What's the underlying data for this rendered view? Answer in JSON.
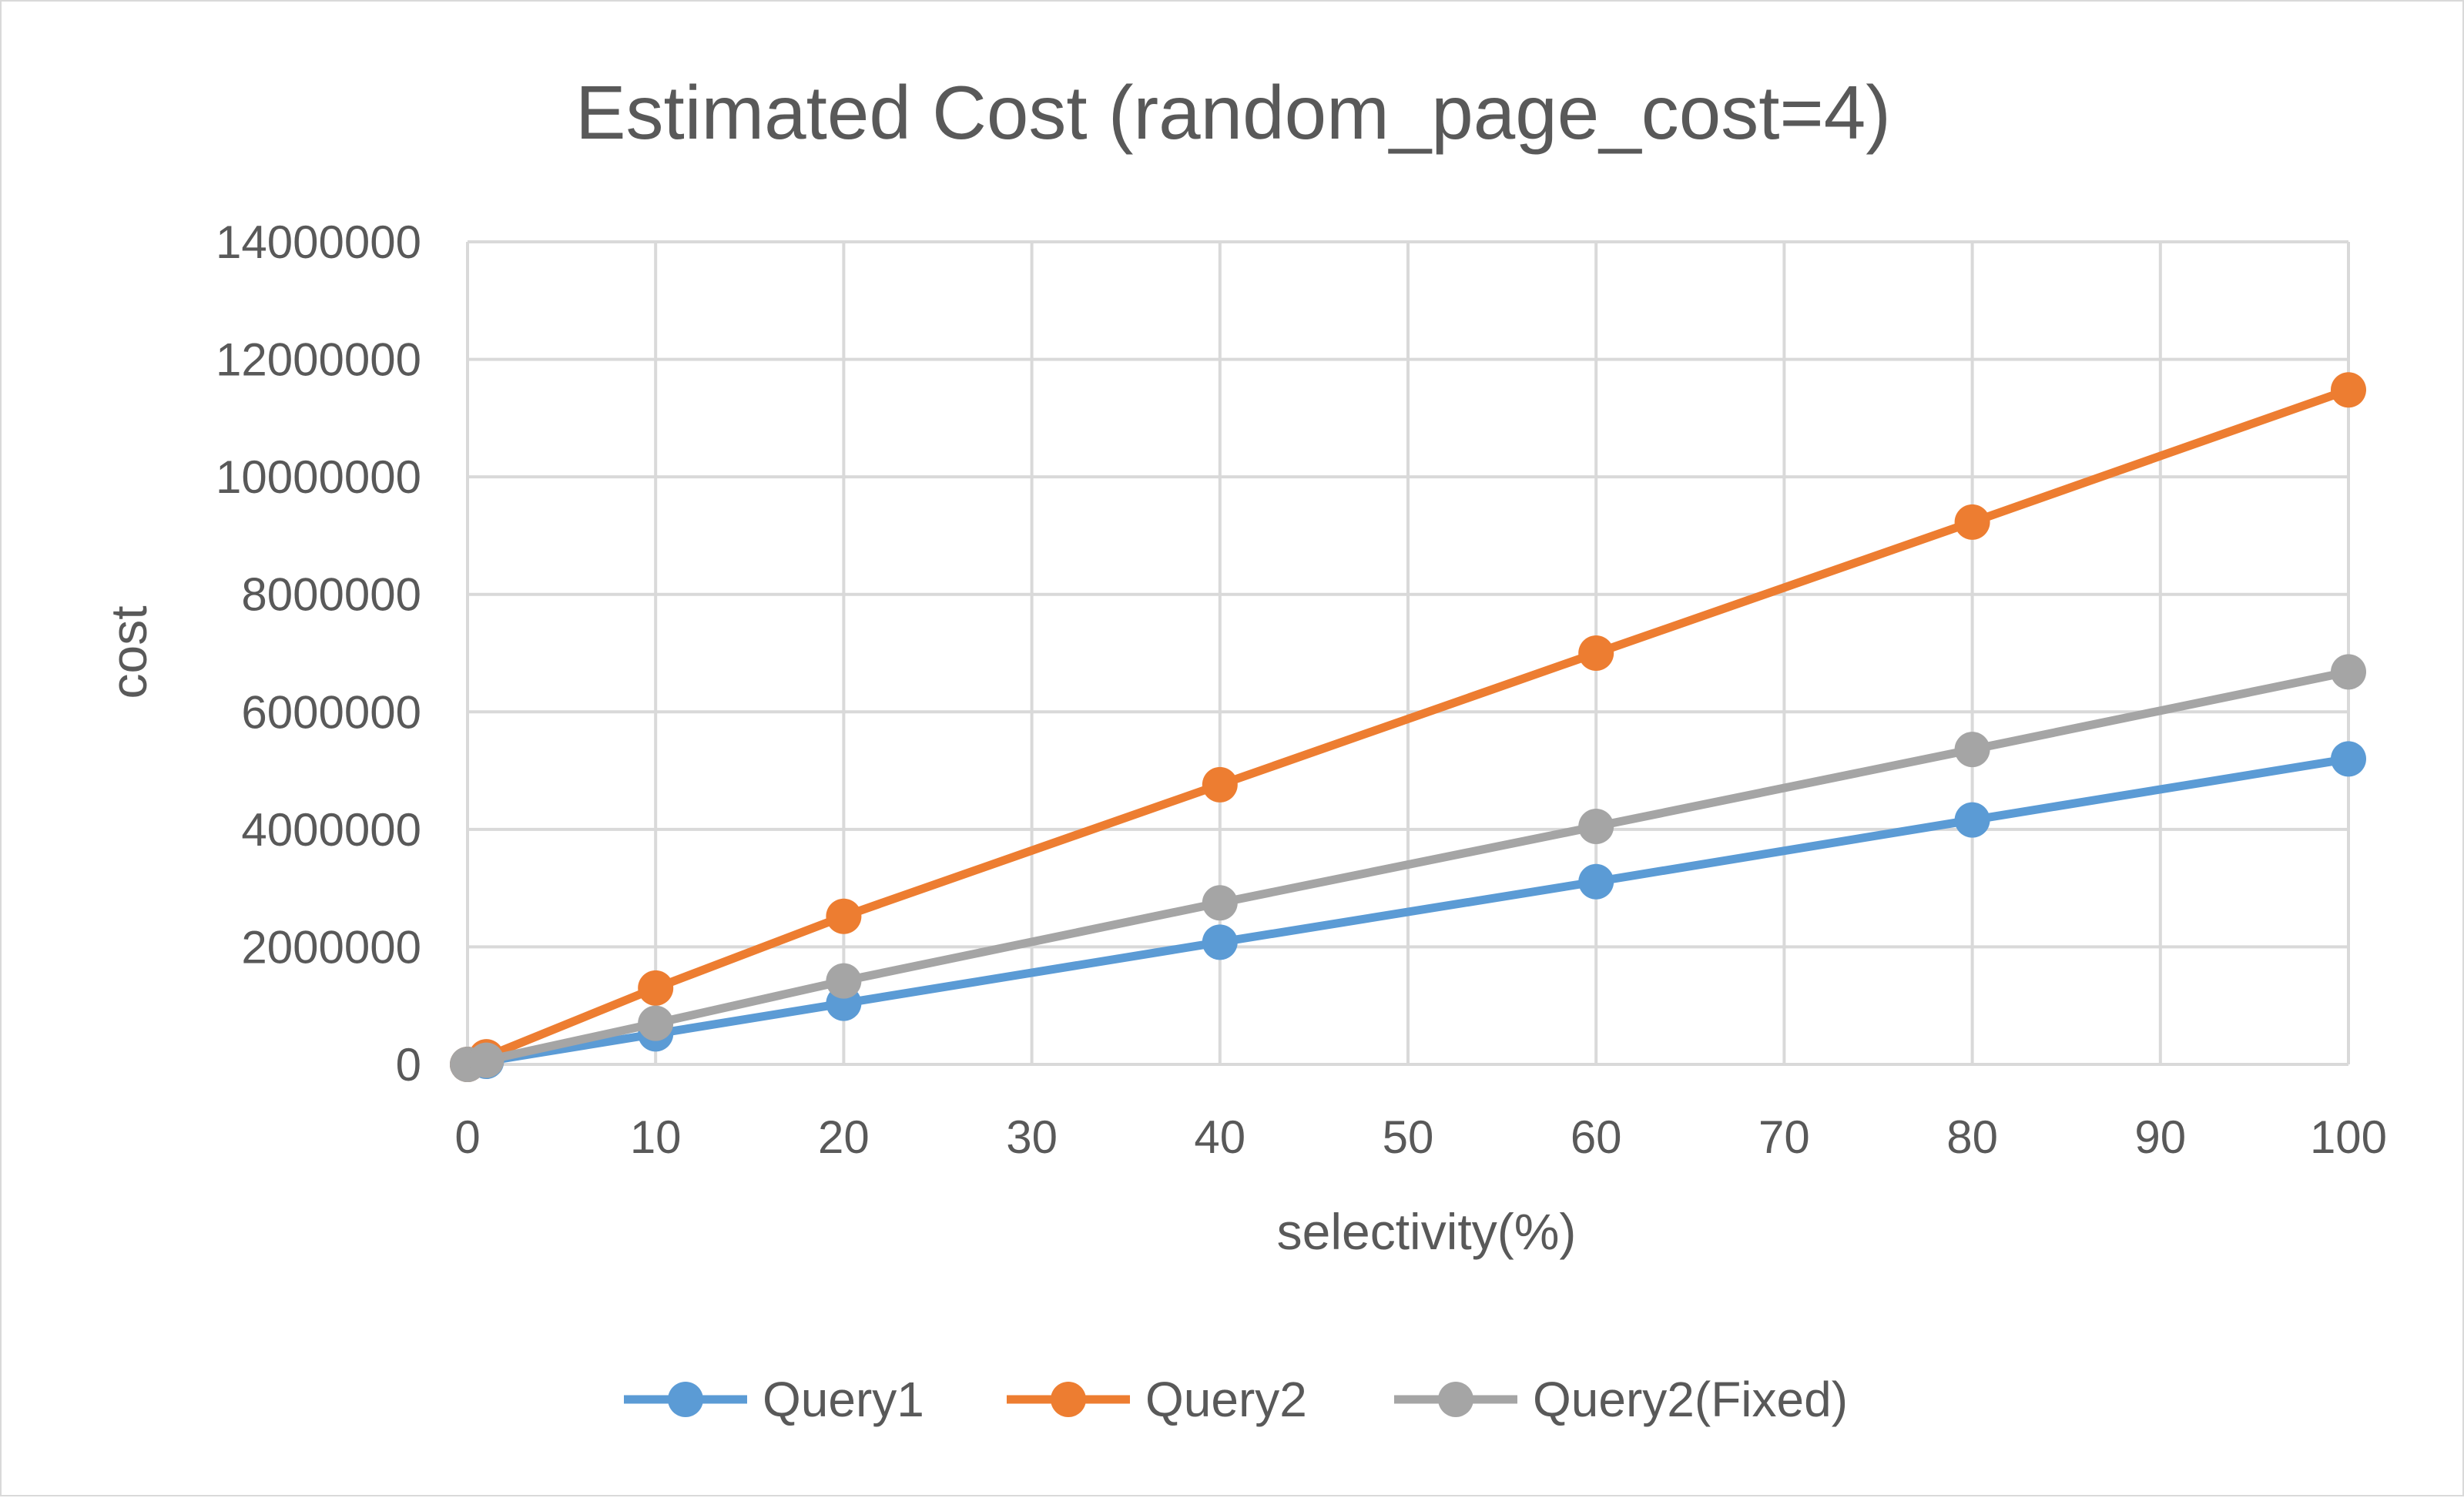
{
  "chart_data": {
    "type": "line",
    "title": "Estimated Cost (random_page_cost=4)",
    "xlabel": "selectivity(%)",
    "ylabel": "cost",
    "xlim": [
      0,
      100
    ],
    "ylim": [
      0,
      14000000
    ],
    "x_ticks": [
      0,
      10,
      20,
      30,
      40,
      50,
      60,
      70,
      80,
      90,
      100
    ],
    "y_ticks": [
      0,
      2000000,
      4000000,
      6000000,
      8000000,
      10000000,
      12000000,
      14000000
    ],
    "grid": true,
    "legend_position": "bottom",
    "x": [
      0,
      1,
      10,
      20,
      40,
      60,
      80,
      100
    ],
    "series": [
      {
        "name": "Query1",
        "color": "#5B9BD5",
        "values": [
          0,
          52000,
          520000,
          1040000,
          2080000,
          3110000,
          4160000,
          5200000
        ]
      },
      {
        "name": "Query2",
        "color": "#ED7D31",
        "values": [
          0,
          130000,
          1300000,
          2520000,
          4760000,
          7000000,
          9230000,
          11480000
        ]
      },
      {
        "name": "Query2(Fixed)",
        "color": "#A5A5A5",
        "values": [
          0,
          70000,
          700000,
          1420000,
          2750000,
          4050000,
          5360000,
          6680000
        ]
      }
    ]
  }
}
